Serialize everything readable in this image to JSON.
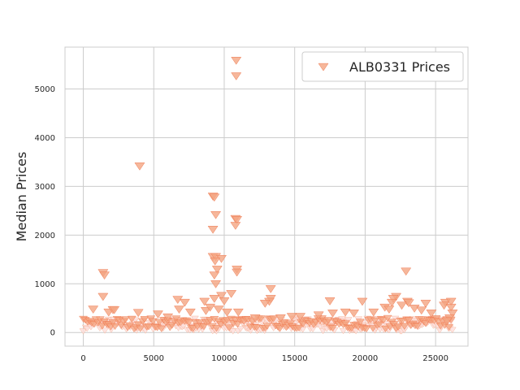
{
  "chart_data": {
    "type": "scatter",
    "title": "",
    "xlabel": "",
    "ylabel": "Median Prices",
    "xlim": [
      -1300,
      27300
    ],
    "ylim": [
      -280,
      5860
    ],
    "xticks": [
      0,
      5000,
      10000,
      15000,
      20000,
      25000
    ],
    "yticks": [
      0,
      1000,
      2000,
      3000,
      4000,
      5000
    ],
    "grid": true,
    "legend": {
      "position": "top-right"
    },
    "series": [
      {
        "name": "ALB0331 Prices",
        "marker": "triangle-down",
        "color": "#f4a582",
        "points": [
          [
            10850,
            5590
          ],
          [
            10850,
            5270
          ],
          [
            4000,
            3420
          ],
          [
            9200,
            2800
          ],
          [
            9300,
            2780
          ],
          [
            9200,
            2120
          ],
          [
            9400,
            2420
          ],
          [
            10800,
            2340
          ],
          [
            10900,
            2320
          ],
          [
            10800,
            2200
          ],
          [
            9200,
            1560
          ],
          [
            9400,
            1560
          ],
          [
            9800,
            1520
          ],
          [
            9350,
            1470
          ],
          [
            9500,
            1300
          ],
          [
            9300,
            1180
          ],
          [
            9400,
            1000
          ],
          [
            10900,
            1300
          ],
          [
            10900,
            1240
          ],
          [
            1400,
            1230
          ],
          [
            1500,
            1180
          ],
          [
            1400,
            740
          ],
          [
            10500,
            800
          ],
          [
            9800,
            760
          ],
          [
            9300,
            700
          ],
          [
            10000,
            650
          ],
          [
            13300,
            900
          ],
          [
            13300,
            700
          ],
          [
            13200,
            640
          ],
          [
            12900,
            600
          ],
          [
            22900,
            1260
          ],
          [
            22200,
            740
          ],
          [
            22000,
            700
          ],
          [
            21900,
            620
          ],
          [
            17500,
            650
          ],
          [
            19800,
            640
          ],
          [
            23000,
            640
          ],
          [
            23100,
            610
          ],
          [
            24300,
            600
          ],
          [
            25700,
            620
          ],
          [
            26100,
            640
          ],
          [
            6700,
            680
          ],
          [
            7200,
            620
          ],
          [
            8600,
            640
          ],
          [
            700,
            480
          ],
          [
            1800,
            420
          ],
          [
            2100,
            470
          ],
          [
            2200,
            470
          ],
          [
            3900,
            410
          ],
          [
            5300,
            380
          ],
          [
            6000,
            320
          ],
          [
            6800,
            480
          ],
          [
            7600,
            420
          ],
          [
            8700,
            450
          ],
          [
            9000,
            520
          ],
          [
            9600,
            480
          ],
          [
            10200,
            420
          ],
          [
            11000,
            420
          ],
          [
            12200,
            300
          ],
          [
            14000,
            300
          ],
          [
            14800,
            330
          ],
          [
            15400,
            330
          ],
          [
            16700,
            360
          ],
          [
            17700,
            400
          ],
          [
            18600,
            420
          ],
          [
            19200,
            400
          ],
          [
            20600,
            420
          ],
          [
            21400,
            520
          ],
          [
            21700,
            480
          ],
          [
            22600,
            560
          ],
          [
            23500,
            500
          ],
          [
            24000,
            460
          ],
          [
            24700,
            400
          ],
          [
            25600,
            560
          ],
          [
            26100,
            520
          ],
          [
            26200,
            400
          ],
          [
            26000,
            300
          ],
          [
            25800,
            240
          ]
        ]
      }
    ]
  }
}
